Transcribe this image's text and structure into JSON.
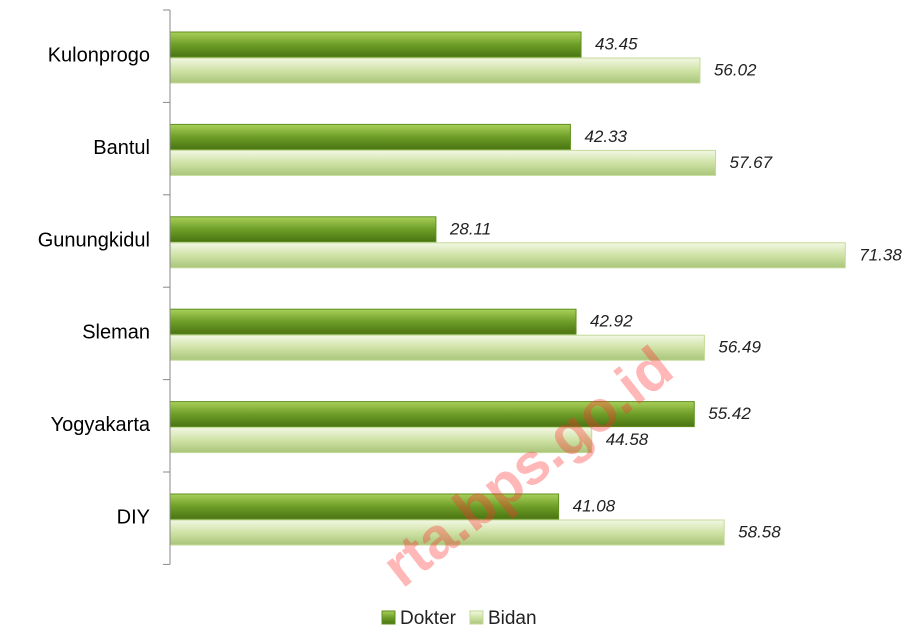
{
  "chart_data": {
    "type": "hbar",
    "categories": [
      "Kulonprogo",
      "Bantul",
      "Gunungkidul",
      "Sleman",
      "Yogyakarta",
      "DIY"
    ],
    "series": [
      {
        "name": "Dokter",
        "color": "#5f8f1f",
        "values": [
          43.45,
          42.33,
          28.11,
          42.92,
          55.42,
          41.08
        ]
      },
      {
        "name": "Bidan",
        "color": "#c4da98",
        "values": [
          56.02,
          57.67,
          71.38,
          56.49,
          44.58,
          58.58
        ]
      }
    ],
    "xlim": [
      0,
      75
    ],
    "legend": "bottom",
    "watermark": "rta.bps.go.id"
  }
}
